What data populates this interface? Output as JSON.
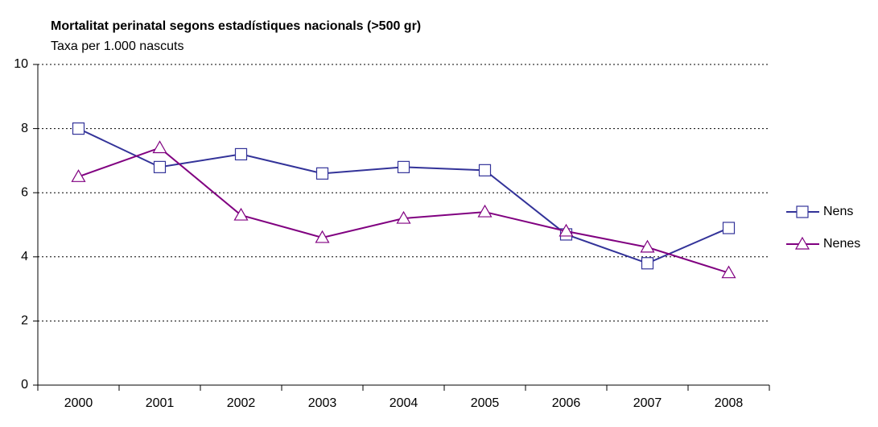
{
  "chart_data": {
    "type": "line",
    "title": "Mortalitat perinatal segons estadístiques nacionals (>500 gr)",
    "subtitle": "Taxa per 1.000 nascuts",
    "categories": [
      "2000",
      "2001",
      "2002",
      "2003",
      "2004",
      "2005",
      "2006",
      "2007",
      "2008"
    ],
    "series": [
      {
        "name": "Nens",
        "color": "#333399",
        "marker": "square",
        "values": [
          8.0,
          6.8,
          7.2,
          6.6,
          6.8,
          6.7,
          4.7,
          3.8,
          4.9
        ]
      },
      {
        "name": "Nenes",
        "color": "#800080",
        "marker": "triangle",
        "values": [
          6.5,
          7.4,
          5.3,
          4.6,
          5.2,
          5.4,
          4.8,
          4.3,
          3.5
        ]
      }
    ],
    "ylim": [
      0,
      10
    ],
    "yticks": [
      0,
      2,
      4,
      6,
      8,
      10
    ],
    "grid": true,
    "legend": "right"
  }
}
